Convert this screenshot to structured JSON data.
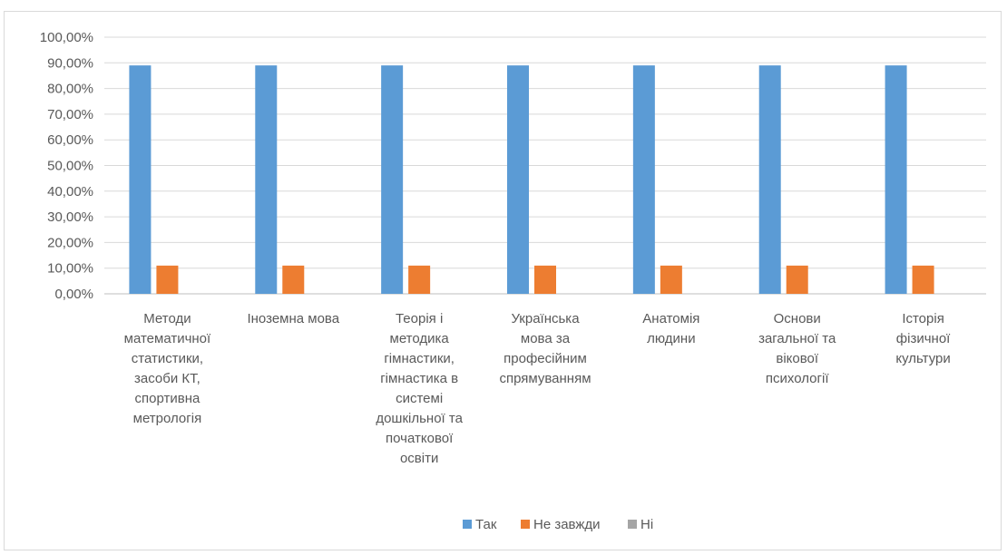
{
  "chart_data": {
    "type": "bar",
    "categories": [
      [
        "Методи",
        "математичної",
        "статистики,",
        "засоби КТ,",
        "спортивна",
        "метрологія"
      ],
      [
        "Іноземна мова"
      ],
      [
        "Теорія і",
        "методика",
        "гімнастики,",
        "гімнастика в",
        "системі",
        "дошкільної та",
        "початкової",
        "освіти"
      ],
      [
        "Українська",
        "мова за",
        "професійним",
        "спрямуванням"
      ],
      [
        "Анатомія",
        "людини"
      ],
      [
        "Основи",
        "загальної та",
        "вікової",
        "психології"
      ],
      [
        "Історія",
        "фізичної",
        "культури"
      ]
    ],
    "series": [
      {
        "name": "Так",
        "color": "#5b9bd5",
        "values": [
          0.89,
          0.89,
          0.89,
          0.89,
          0.89,
          0.89,
          0.89
        ]
      },
      {
        "name": "Не завжди",
        "color": "#ed7d31",
        "values": [
          0.11,
          0.11,
          0.11,
          0.11,
          0.11,
          0.11,
          0.11
        ]
      },
      {
        "name": "Ні",
        "color": "#a5a5a5",
        "values": [
          0,
          0,
          0,
          0,
          0,
          0,
          0
        ]
      }
    ],
    "ylim": [
      0,
      1
    ],
    "yticks": [
      "0,00%",
      "10,00%",
      "20,00%",
      "30,00%",
      "40,00%",
      "50,00%",
      "60,00%",
      "70,00%",
      "80,00%",
      "90,00%",
      "100,00%"
    ],
    "grid": true,
    "legend": "bottom",
    "title": "",
    "xlabel": "",
    "ylabel": ""
  }
}
